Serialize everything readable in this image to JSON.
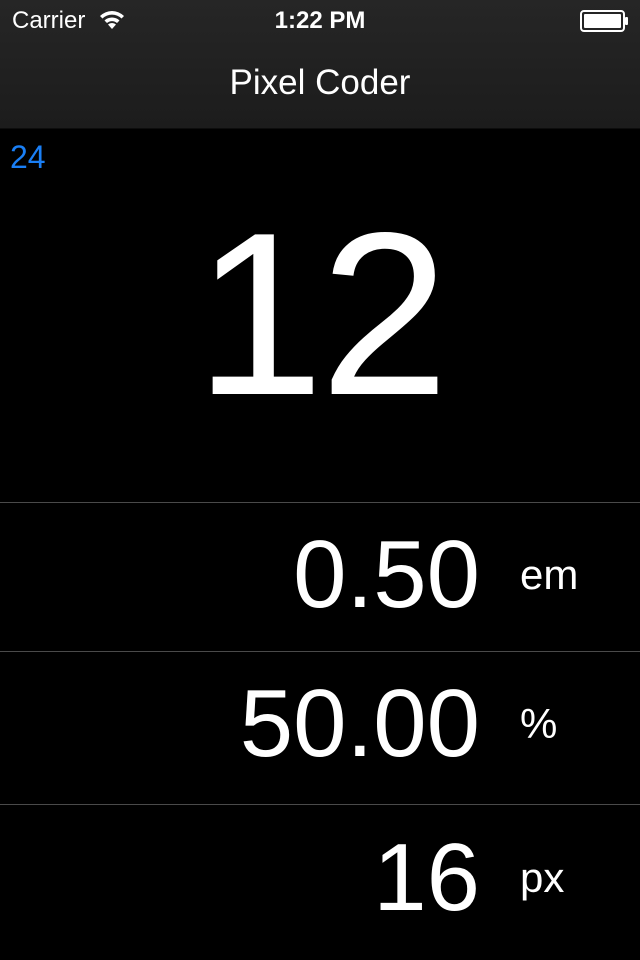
{
  "status_bar": {
    "carrier": "Carrier",
    "wifi_icon": "wifi-icon",
    "time": "1:22 PM",
    "battery_icon": "battery-icon"
  },
  "nav_bar": {
    "title": "Pixel Coder"
  },
  "input": {
    "base_value": "24",
    "target_value": "12"
  },
  "results": [
    {
      "value": "0.50",
      "unit": "em"
    },
    {
      "value": "50.00",
      "unit": "%"
    },
    {
      "value": "16",
      "unit": "px"
    }
  ],
  "colors": {
    "background": "#000000",
    "accent": "#1a7ff5",
    "text": "#ffffff",
    "divider": "#4a4a4a"
  }
}
